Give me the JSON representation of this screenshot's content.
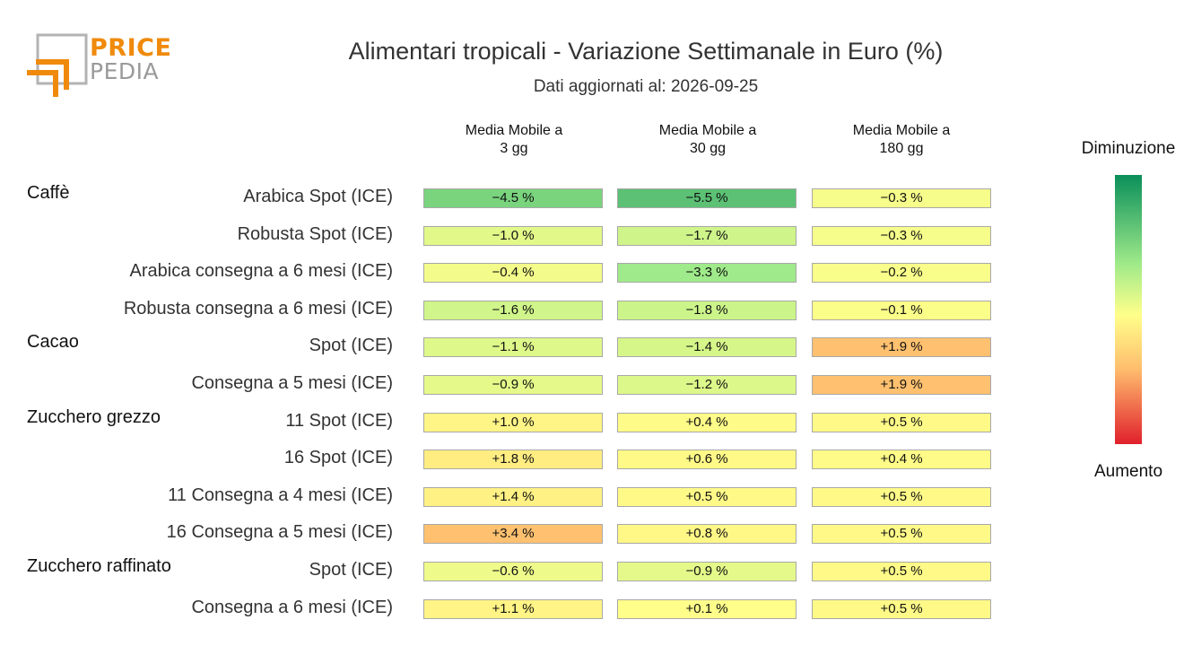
{
  "logo": {
    "word1": "PRICE",
    "word2": "PEDIA"
  },
  "chart_data": {
    "type": "table",
    "title": "Alimentari tropicali - Variazione Settimanale in Euro (%)",
    "subtitle": "Dati aggiornati al: 2026-09-25",
    "columns": [
      {
        "line1": "Media Mobile a",
        "line2": "3 gg"
      },
      {
        "line1": "Media Mobile a",
        "line2": "30 gg"
      },
      {
        "line1": "Media Mobile a",
        "line2": "180 gg"
      }
    ],
    "groups": [
      {
        "name": "Caffè",
        "rows": [
          {
            "label": "Arabica Spot (ICE)",
            "values": [
              -4.5,
              -5.5,
              -0.3
            ]
          },
          {
            "label": "Robusta Spot (ICE)",
            "values": [
              -1.0,
              -1.7,
              -0.3
            ]
          },
          {
            "label": "Arabica consegna a 6 mesi (ICE)",
            "values": [
              -0.4,
              -3.3,
              -0.2
            ]
          },
          {
            "label": "Robusta consegna a 6 mesi (ICE)",
            "values": [
              -1.6,
              -1.8,
              -0.1
            ]
          }
        ]
      },
      {
        "name": "Cacao",
        "rows": [
          {
            "label": "Spot (ICE)",
            "values": [
              -1.1,
              -1.4,
              1.9
            ]
          },
          {
            "label": "Consegna a 5 mesi (ICE)",
            "values": [
              -0.9,
              -1.2,
              1.9
            ]
          }
        ]
      },
      {
        "name": "Zucchero grezzo",
        "rows": [
          {
            "label": "11 Spot (ICE)",
            "values": [
              1.0,
              0.4,
              0.5
            ]
          },
          {
            "label": "16 Spot (ICE)",
            "values": [
              1.8,
              0.6,
              0.4
            ]
          },
          {
            "label": "11 Consegna a 4 mesi (ICE)",
            "values": [
              1.4,
              0.5,
              0.5
            ]
          },
          {
            "label": "16 Consegna a 5 mesi (ICE)",
            "values": [
              3.4,
              0.8,
              0.5
            ]
          }
        ]
      },
      {
        "name": "Zucchero raffinato",
        "rows": [
          {
            "label": "Spot (ICE)",
            "values": [
              -0.6,
              -0.9,
              0.5
            ]
          },
          {
            "label": "Consegna a 6 mesi (ICE)",
            "values": [
              1.1,
              0.1,
              0.5
            ]
          }
        ]
      }
    ],
    "value_suffix": " %",
    "legend": {
      "top": "Diminuzione",
      "bottom": "Aumento",
      "placement": "right"
    },
    "colors": {
      "strong_decrease": "#0a8f5a",
      "decrease": "#9fea8a",
      "neutral": "#ffff8a",
      "increase": "#ffbe6e",
      "strong_increase": "#e0202c"
    }
  }
}
